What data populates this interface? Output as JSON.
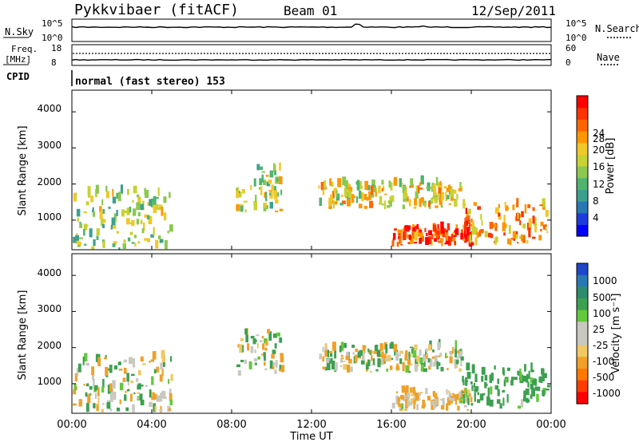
{
  "header": {
    "title": "Pykkvibaer (fitACF)",
    "beam": "Beam 01",
    "date": "12/Sep/2011"
  },
  "nsky_panel": {
    "left_label": "N.Sky",
    "left_ticks": [
      "10^5",
      "10^0"
    ],
    "right_ticks": [
      "10^5",
      "10^0"
    ],
    "right_label": "N.Search"
  },
  "freq_panel": {
    "left_label_1": "Freq.",
    "left_label_2": "[MHz]",
    "left_ticks": [
      "18",
      "8"
    ],
    "right_ticks": [
      "60",
      "0"
    ],
    "right_label": "Nave"
  },
  "cpid_panel": {
    "label": "CPID",
    "value": "normal (fast stereo) 153"
  },
  "power_panel": {
    "ylabel": "Slant Range [km]",
    "yticks": [
      "4000",
      "3000",
      "2000",
      "1000"
    ],
    "cbar_label": "Power [dB]",
    "cbar_ticks": [
      "28",
      "24",
      "20",
      "16",
      "12",
      "8",
      "4"
    ],
    "cbar_colors": [
      "#0000ff",
      "#1e3cdc",
      "#2878b4",
      "#3ca08c",
      "#50b46e",
      "#8cc850",
      "#c8d232",
      "#f0c828",
      "#ff9600",
      "#ff6400",
      "#ff3200",
      "#ff0000"
    ]
  },
  "velocity_panel": {
    "ylabel": "Slant Range [km]",
    "yticks": [
      "4000",
      "3000",
      "2000",
      "1000"
    ],
    "cbar_label": "Velocity [m s⁻¹]",
    "cbar_ticks": [
      "1000",
      "500",
      "100",
      "25",
      "-25",
      "-100",
      "-500",
      "-1000"
    ],
    "cbar_colors": [
      "#1e46c8",
      "#2878b4",
      "#2d8c6e",
      "#3ca050",
      "#64c83c",
      "#c8c8c0",
      "#c8c8c0",
      "#f0c864",
      "#f0a028",
      "#ff7800",
      "#ff3c00",
      "#ff0000"
    ]
  },
  "xaxis": {
    "label": "Time UT",
    "ticks": [
      "00:00",
      "04:00",
      "08:00",
      "12:00",
      "16:00",
      "20:00",
      "00:00"
    ]
  },
  "chart_data": [
    {
      "type": "line",
      "title": "N.Sky / N.Search",
      "x_range_hours": [
        0,
        24
      ],
      "yscale": "log",
      "series": [
        {
          "name": "N.Sky",
          "level": "approximately constant near 10^4, small spikes near 17:00 and 20:00"
        }
      ]
    },
    {
      "type": "line",
      "title": "Freq. / Nave",
      "x_range_hours": [
        0,
        24
      ],
      "ylim_left": [
        8,
        18
      ],
      "ylim_right": [
        0,
        60
      ],
      "series": [
        {
          "name": "Freq.",
          "approx_value": 11
        },
        {
          "name": "Nave",
          "approx_value": 4
        }
      ]
    },
    {
      "type": "heatmap",
      "title": "Power [dB]",
      "x_range_hours": [
        0,
        24
      ],
      "y_range_km": [
        180,
        4600
      ],
      "value_range": [
        0,
        30
      ],
      "regions": [
        {
          "t_start": 0.0,
          "t_end": 5.0,
          "r_start": 180,
          "r_end": 1800,
          "level": 14
        },
        {
          "t_start": 8.2,
          "t_end": 10.5,
          "r_start": 1200,
          "r_end": 2400,
          "level": 16
        },
        {
          "t_start": 12.3,
          "t_end": 19.5,
          "r_start": 1300,
          "r_end": 2000,
          "level": 17
        },
        {
          "t_start": 16.0,
          "t_end": 20.0,
          "r_start": 250,
          "r_end": 750,
          "level": 27
        },
        {
          "t_start": 19.5,
          "t_end": 23.8,
          "r_start": 300,
          "r_end": 1400,
          "level": 22
        }
      ]
    },
    {
      "type": "heatmap",
      "title": "Velocity [m s⁻¹]",
      "x_range_hours": [
        0,
        24
      ],
      "y_range_km": [
        180,
        4600
      ],
      "value_range": [
        -1000,
        1000
      ],
      "regions": [
        {
          "t_start": 0.0,
          "t_end": 5.0,
          "r_start": 200,
          "r_end": 1700,
          "level": 0
        },
        {
          "t_start": 8.2,
          "t_end": 10.5,
          "r_start": 1200,
          "r_end": 2400,
          "level": 0
        },
        {
          "t_start": 12.3,
          "t_end": 19.5,
          "r_start": 1300,
          "r_end": 2000,
          "level": 0
        },
        {
          "t_start": 16.0,
          "t_end": 20.0,
          "r_start": 250,
          "r_end": 750,
          "level": -150
        },
        {
          "t_start": 19.5,
          "t_end": 23.8,
          "r_start": 300,
          "r_end": 1400,
          "level": 300
        }
      ]
    }
  ]
}
